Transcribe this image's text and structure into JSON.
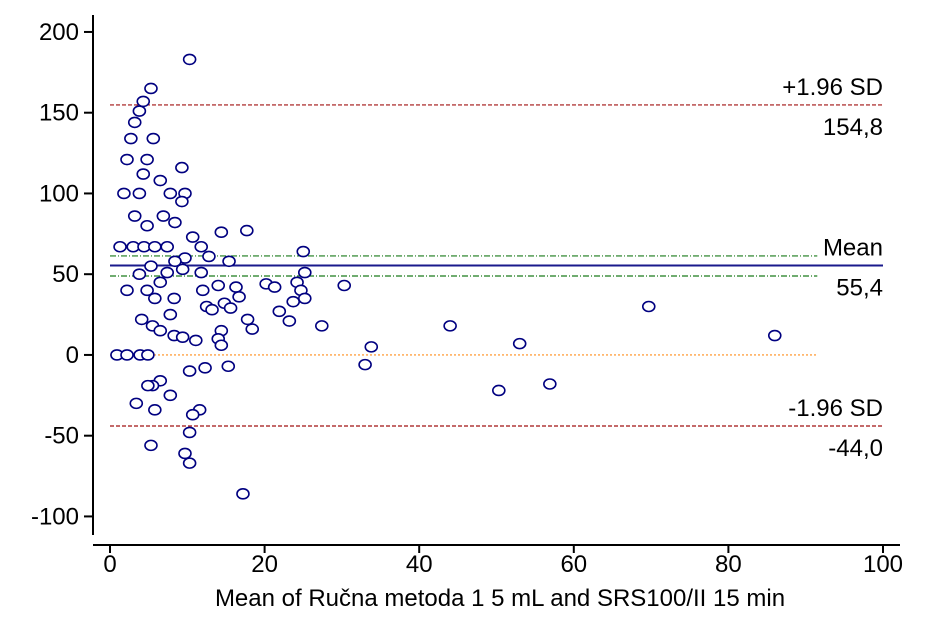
{
  "chart_data": {
    "type": "scatter",
    "x_label": "Mean of Ručna  metoda  1  5  mL and SRS100/II 15 min",
    "color": "#000080",
    "x": [
      0.9,
      2.2,
      3.9,
      4.9,
      1.3,
      3,
      4.4,
      5.8,
      7.4,
      1.8,
      3.8,
      7.8,
      9.7,
      2.2,
      4.8,
      9.3,
      2.7,
      5.6,
      3.2,
      3.8,
      4.3,
      5.3,
      10.3,
      4.3,
      6.5,
      9.3,
      3.2,
      6.9,
      4.8,
      8.4,
      10.7,
      11.8,
      12.8,
      14.4,
      17.7,
      15.4,
      25,
      9.7,
      8.4,
      5.3,
      3.8,
      7.4,
      9.4,
      11.8,
      2.2,
      4.8,
      6.5,
      8.3,
      12,
      14,
      16.3,
      20.2,
      21.3,
      25.2,
      24.2,
      24.7,
      23.7,
      25.2,
      30.3,
      12.5,
      14.8,
      16.7,
      15.6,
      13.2,
      21.9,
      23.2,
      17.8,
      18.4,
      27.4,
      44,
      5.8,
      4.1,
      5.5,
      6.5,
      8.3,
      9.4,
      7.8,
      14.4,
      14,
      11.1,
      14.4,
      33.8,
      53,
      69.7,
      86,
      33,
      15.3,
      12.3,
      10.3,
      6.5,
      5.5,
      4.9,
      7.8,
      3.4,
      5.8,
      11.6,
      10.7,
      10.3,
      5.3,
      9.7,
      10.3,
      17.2,
      50.3,
      56.9
    ],
    "values": [
      0,
      0,
      0,
      0,
      67,
      67,
      67,
      67,
      67,
      100,
      100,
      100,
      100,
      121,
      121,
      116,
      134,
      134,
      144,
      151,
      157,
      165,
      183,
      112,
      108,
      95,
      86,
      86,
      80,
      82,
      73,
      67,
      61,
      76,
      77,
      58,
      64,
      60,
      58,
      55,
      50,
      51,
      53,
      51,
      40,
      40,
      45,
      35,
      40,
      43,
      42,
      44,
      42,
      51,
      45,
      40,
      33,
      35,
      43,
      30,
      32,
      36,
      29,
      28,
      27,
      21,
      22,
      16,
      18,
      18,
      35,
      22,
      18,
      15,
      12,
      11,
      25,
      15,
      10,
      9,
      6,
      5,
      7,
      30,
      12,
      -6,
      -7,
      -8,
      -10,
      -16,
      -19,
      -19,
      -25,
      -30,
      -34,
      -34,
      -37,
      -48,
      -56,
      -61,
      -67,
      -86,
      -22,
      -18
    ],
    "ref_lines": [
      {
        "label": "+1.96 SD",
        "value": 154.8,
        "value_label": "154,8",
        "color": "#a01010",
        "style": "dashed",
        "xrange": [
          0,
          100
        ]
      },
      {
        "label": "Mean",
        "value": 55.4,
        "value_label": "55,4",
        "color": "#1a1a8c",
        "style": "solid",
        "xrange": [
          0,
          100
        ]
      },
      {
        "label": "-1.96 SD",
        "value": -44.0,
        "value_label": "-44,0",
        "color": "#a01010",
        "style": "dashed",
        "xrange": [
          0,
          100
        ]
      },
      {
        "value": 61.3,
        "color": "#1a7a1a",
        "style": "dashdot",
        "xrange": [
          0,
          91.5
        ]
      },
      {
        "value": 48.9,
        "color": "#1a7a1a",
        "style": "dashdot",
        "xrange": [
          0,
          91.5
        ]
      },
      {
        "value": 0,
        "color": "#ff8c1a",
        "style": "dotted",
        "xrange": [
          0,
          91.5
        ]
      }
    ],
    "xlim": [
      -2.2,
      102.2
    ],
    "ylim": [
      -111.5,
      210.5
    ],
    "xticks": [
      0,
      20,
      40,
      60,
      80,
      100
    ],
    "yticks": [
      -100,
      -50,
      0,
      50,
      100,
      150,
      200
    ]
  }
}
